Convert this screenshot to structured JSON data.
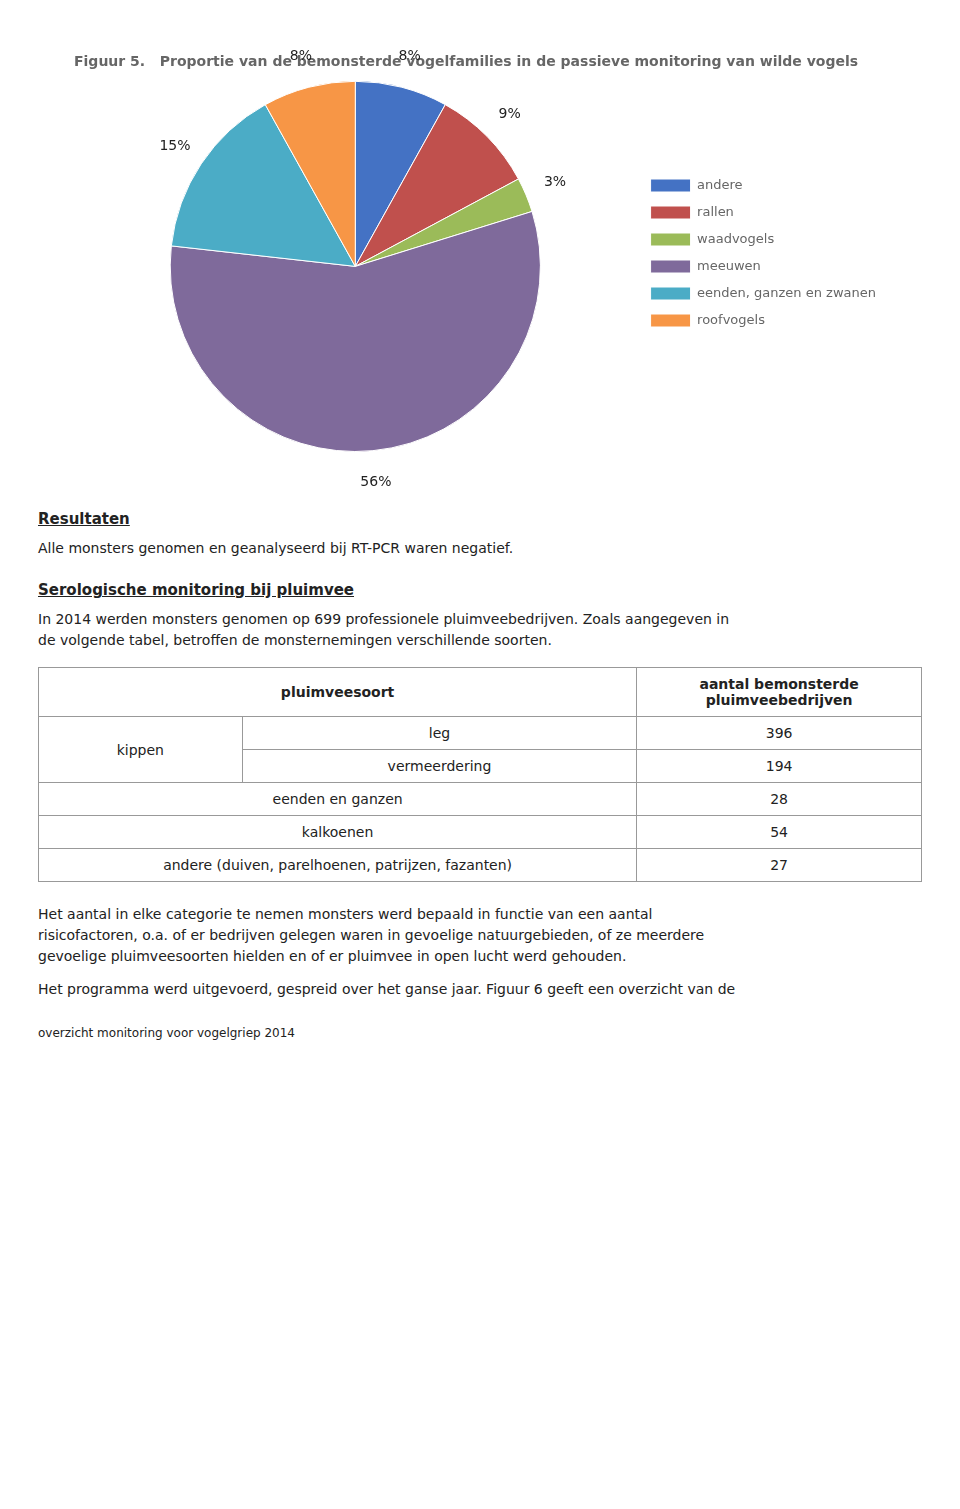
{
  "chart_data": [
    {
      "type": "pie",
      "title": "Figuur 5.   Proportie van de bemonsterde vogelfamilies in de passieve monitoring van wilde vogels",
      "categories": [
        "andere",
        "rallen",
        "waadvogels",
        "meeuwen",
        "eenden, ganzen en zwanen",
        "roofvogels"
      ],
      "values": [
        8,
        9,
        3,
        56,
        15,
        8
      ],
      "value_labels": [
        "8%",
        "9%",
        "3%",
        "56%",
        "15%",
        "8%"
      ],
      "colors": [
        "#4472C4",
        "#C0504D",
        "#9BBB59",
        "#7F6A9B",
        "#4BACC6",
        "#F79646"
      ],
      "data_labels": true,
      "legend": "right"
    },
    {
      "type": "text",
      "title": "Resultaten",
      "annotations": [
        "Alle monsters genomen en geanalyseerd bij RT-PCR waren negatief."
      ]
    },
    {
      "type": "text",
      "title": "Serologische monitoring bij pluimvee",
      "annotations": [
        "In 2014 werden monsters genomen op 699 professionele pluimveebedrijven. Zoals aangegeven in\nde volgende tabel, betroffen de monsternemingen verschillende soorten."
      ]
    },
    {
      "type": "table",
      "annotations": [
        "pluimveesoort",
        "aantal bemonsterde\npluimveebedrijven"
      ],
      "categories": [
        [
          "kippen",
          "leg"
        ],
        [
          "kippen",
          "vermeerdering"
        ],
        "eenden en ganzen",
        "kalkoenen",
        "andere (duiven, parelhoenen, patrijzen, fazanten)"
      ],
      "values": [
        396,
        194,
        28,
        54,
        27
      ]
    },
    {
      "type": "text",
      "annotations": [
        "Het aantal in elke categorie te nemen monsters werd bepaald in functie van een aantal\nrisicofactoren, o.a. of er bedrijven gelegen waren in gevoelige natuurgebieden, of ze meerdere\ngevoelige pluimveesoorten hielden en of er pluimvee in open lucht werd gehouden.",
        "Het programma werd uitgevoerd, gespreid over het ganse jaar. Figuur 6 geeft een overzicht van de"
      ]
    },
    {
      "type": "footer",
      "annotations": [
        "overzicht monitoring voor vogelgriep 2014"
      ]
    }
  ]
}
